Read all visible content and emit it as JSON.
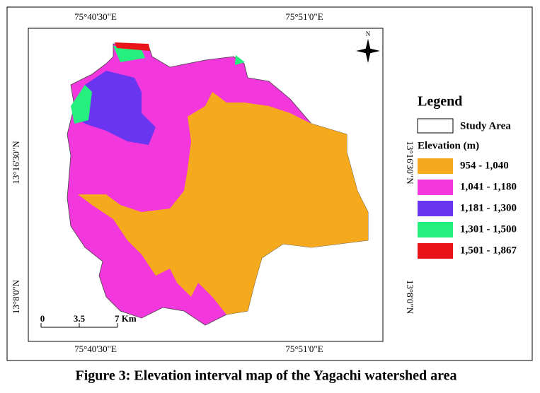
{
  "map": {
    "top_labels": [
      "75°40'30\"E",
      "75°51'0\"E"
    ],
    "bottom_labels": [
      "75°40'30\"E",
      "75°51'0\"E"
    ],
    "left_labels": [
      "13°16'30\"N",
      "13°8'0\"N"
    ],
    "right_labels": [
      "13°16'30\"N",
      "13°8'0\"N"
    ],
    "north_label": "N",
    "scale_bar": [
      "0",
      "3.5",
      "7 Km"
    ]
  },
  "legend": {
    "title": "Legend",
    "study_area": "Study Area",
    "elevation_title": "Elevation (m)",
    "classes": [
      {
        "label": "954 - 1,040",
        "color": "#f5a91c"
      },
      {
        "label": "1,041 - 1,180",
        "color": "#f238dc"
      },
      {
        "label": "1,181 - 1,300",
        "color": "#6a35f0"
      },
      {
        "label": "1,301 - 1,500",
        "color": "#25f07e"
      },
      {
        "label": "1,501 - 1,867",
        "color": "#e8141a"
      }
    ]
  },
  "caption": "Figure 3: Elevation interval map of the Yagachi watershed area"
}
